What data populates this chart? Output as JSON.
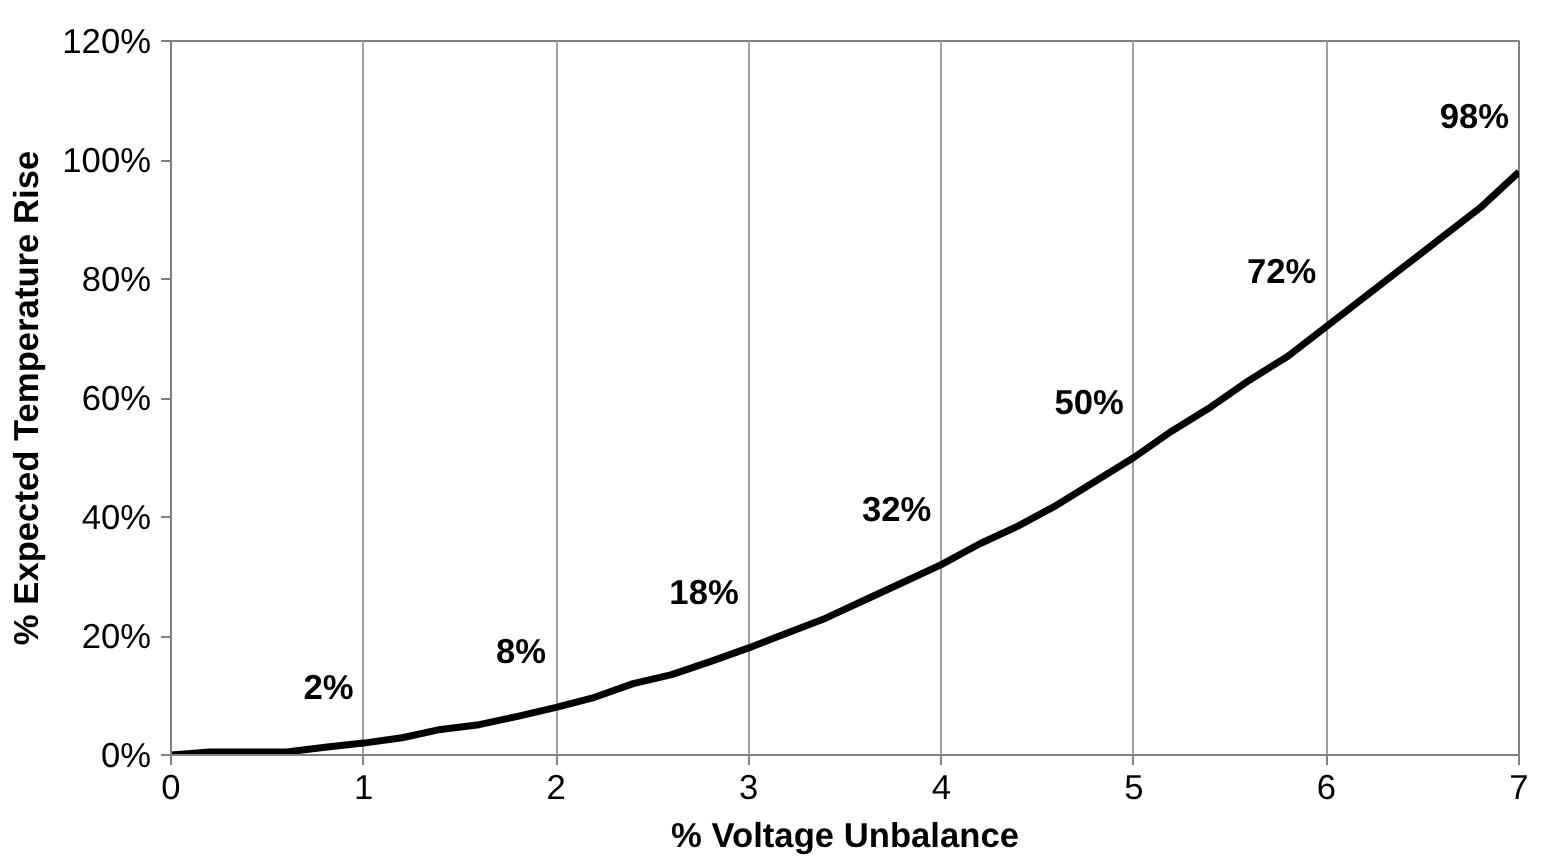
{
  "chart_data": {
    "type": "line",
    "xlabel": "% Voltage Unbalance",
    "ylabel": "% Expected Temperature Rise",
    "x": [
      0,
      0.2,
      0.4,
      0.6,
      0.8,
      1,
      1.2,
      1.4,
      1.6,
      1.8,
      2,
      2.2,
      2.4,
      2.6,
      2.8,
      3,
      3.2,
      3.4,
      3.6,
      3.8,
      4,
      4.2,
      4.4,
      4.6,
      4.8,
      5,
      5.2,
      5.4,
      5.6,
      5.8,
      6,
      6.2,
      6.4,
      6.6,
      6.8,
      7
    ],
    "series": [
      {
        "color": "#000000",
        "values": [
          0,
          0.5,
          0.5,
          0.5,
          1.3,
          2,
          2.9,
          4.3,
          5.1,
          6.5,
          8,
          9.7,
          12,
          13.5,
          15.7,
          18,
          20.5,
          23,
          26,
          29,
          32,
          35.5,
          38.5,
          42,
          46,
          50,
          54.5,
          58.5,
          63,
          67,
          72,
          77,
          82,
          87,
          92,
          98
        ]
      }
    ],
    "annotations": [
      {
        "text": "2%",
        "x": 1,
        "y": 2
      },
      {
        "text": "8%",
        "x": 2,
        "y": 8
      },
      {
        "text": "18%",
        "x": 3,
        "y": 18
      },
      {
        "text": "32%",
        "x": 4,
        "y": 32
      },
      {
        "text": "50%",
        "x": 5,
        "y": 50
      },
      {
        "text": "72%",
        "x": 6,
        "y": 72
      },
      {
        "text": "98%",
        "x": 7,
        "y": 98
      }
    ],
    "xlim": [
      0,
      7
    ],
    "xticks": [
      0,
      1,
      2,
      3,
      4,
      5,
      6,
      7
    ],
    "ylim": [
      0,
      120
    ],
    "yticks": [
      {
        "value": 0,
        "label": "0%"
      },
      {
        "value": 20,
        "label": "20%"
      },
      {
        "value": 40,
        "label": "40%"
      },
      {
        "value": 60,
        "label": "60%"
      },
      {
        "value": 80,
        "label": "80%"
      },
      {
        "value": 100,
        "label": "100%"
      },
      {
        "value": 120,
        "label": "120%"
      }
    ],
    "grid": "x",
    "line_style": "solid",
    "marker": "none"
  }
}
